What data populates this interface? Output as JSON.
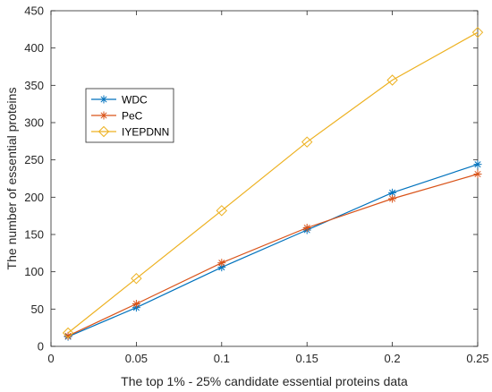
{
  "chart_data": {
    "type": "line",
    "xlabel": "The top 1% - 25% candidate essential proteins data",
    "ylabel": "The number of essential proteins",
    "xlim": [
      0,
      0.25
    ],
    "ylim": [
      0,
      450
    ],
    "xticks": [
      0,
      0.05,
      0.1,
      0.15,
      0.2,
      0.25
    ],
    "xtick_labels": [
      "0",
      "0.05",
      "0.1",
      "0.15",
      "0.2",
      "0.25"
    ],
    "yticks": [
      0,
      50,
      100,
      150,
      200,
      250,
      300,
      350,
      400,
      450
    ],
    "ytick_labels": [
      "0",
      "50",
      "100",
      "150",
      "200",
      "250",
      "300",
      "350",
      "400",
      "450"
    ],
    "grid": false,
    "legend_position": "upper-left",
    "x": [
      0.01,
      0.05,
      0.1,
      0.15,
      0.2,
      0.25
    ],
    "series": [
      {
        "name": "WDC",
        "color": "#0072BD",
        "marker": "asterisk",
        "values": [
          13,
          52,
          106,
          156,
          206,
          244
        ]
      },
      {
        "name": "PeC",
        "color": "#D95319",
        "marker": "asterisk",
        "values": [
          14,
          57,
          112,
          159,
          198,
          231
        ]
      },
      {
        "name": "IYEPDNN",
        "color": "#EDB120",
        "marker": "diamond",
        "values": [
          18,
          91,
          182,
          274,
          357,
          421
        ]
      }
    ]
  }
}
